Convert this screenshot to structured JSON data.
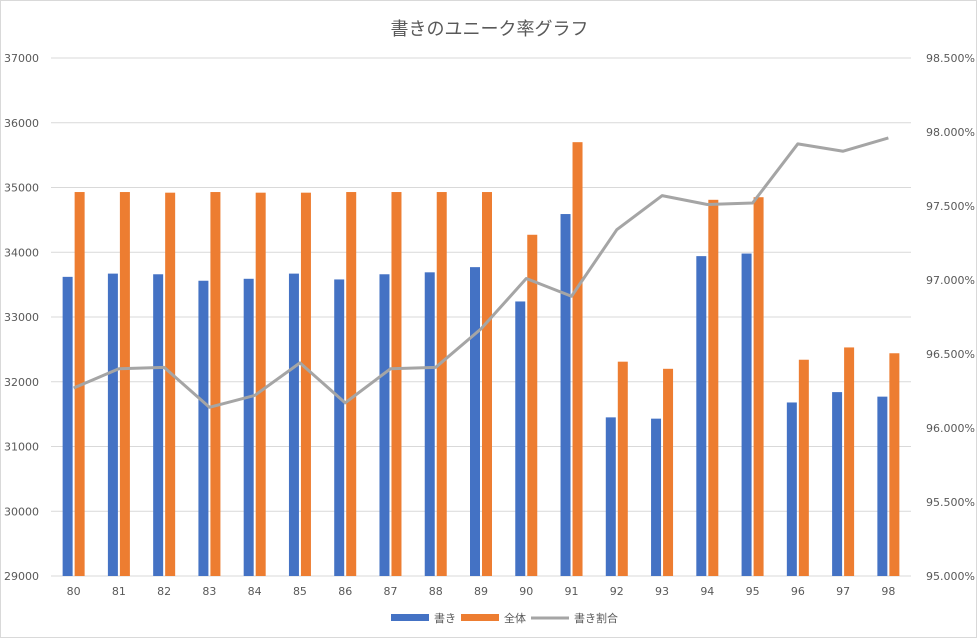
{
  "chart_data": {
    "type": "bar",
    "title": "書きのユニーク率グラフ",
    "categories": [
      "80",
      "81",
      "82",
      "83",
      "84",
      "85",
      "86",
      "87",
      "88",
      "89",
      "90",
      "91",
      "92",
      "93",
      "94",
      "95",
      "96",
      "97",
      "98"
    ],
    "series": [
      {
        "name": "書き",
        "type": "bar",
        "axis": "left",
        "color": "#4472C4",
        "values": [
          33620,
          33670,
          33660,
          33560,
          33590,
          33670,
          33580,
          33660,
          33690,
          33770,
          33240,
          34590,
          31450,
          31430,
          33940,
          33980,
          31680,
          31840,
          31770
        ]
      },
      {
        "name": "全体",
        "type": "bar",
        "axis": "left",
        "color": "#ED7D31",
        "values": [
          34930,
          34930,
          34920,
          34930,
          34920,
          34920,
          34930,
          34930,
          34930,
          34930,
          34270,
          35700,
          32310,
          32200,
          34810,
          34850,
          32340,
          32530,
          32440
        ]
      },
      {
        "name": "書き割合",
        "type": "line",
        "axis": "right",
        "color": "#A5A5A5",
        "values": [
          96.27,
          96.4,
          96.41,
          96.14,
          96.22,
          96.44,
          96.17,
          96.4,
          96.41,
          96.67,
          97.01,
          96.89,
          97.34,
          97.57,
          97.51,
          97.52,
          97.92,
          97.87,
          97.96
        ]
      }
    ],
    "y_left": {
      "min": 29000,
      "max": 37000,
      "step": 1000,
      "ticks": [
        "29000",
        "30000",
        "31000",
        "32000",
        "33000",
        "34000",
        "35000",
        "36000",
        "37000"
      ]
    },
    "y_right": {
      "min": 95.0,
      "max": 98.5,
      "step": 0.5,
      "ticks": [
        "95.000%",
        "95.500%",
        "96.000%",
        "96.500%",
        "97.000%",
        "97.500%",
        "98.000%",
        "98.500%"
      ]
    },
    "grid": true,
    "legend_position": "bottom"
  }
}
